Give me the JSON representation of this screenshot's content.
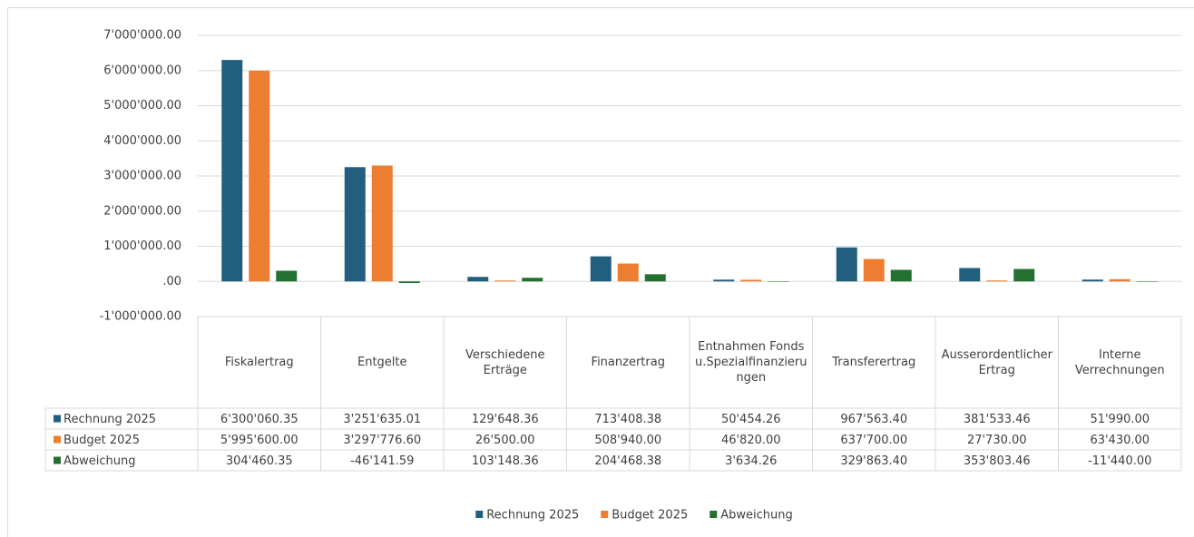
{
  "chart_data": {
    "type": "bar",
    "categories": [
      "Fiskalertrag",
      "Entgelte",
      "Verschiedene Erträge",
      "Finanzertrag",
      "Entnahmen Fonds u.Spezialfinanzierungen",
      "Transferertrag",
      "Ausserordentlicher Ertrag",
      "Interne Verrechnungen"
    ],
    "series": [
      {
        "name": "Rechnung 2025",
        "color": "#225e7e",
        "values": [
          6300060.35,
          3251635.01,
          129648.36,
          713408.38,
          50454.26,
          967563.4,
          381533.46,
          51990.0
        ],
        "value_labels": [
          "6'300'060.35",
          "3'251'635.01",
          "129'648.36",
          "713'408.38",
          "50'454.26",
          "967'563.40",
          "381'533.46",
          "51'990.00"
        ]
      },
      {
        "name": "Budget 2025",
        "color": "#ed7d31",
        "values": [
          5995600.0,
          3297776.6,
          26500.0,
          508940.0,
          46820.0,
          637700.0,
          27730.0,
          63430.0
        ],
        "value_labels": [
          "5'995'600.00",
          "3'297'776.60",
          "26'500.00",
          "508'940.00",
          "46'820.00",
          "637'700.00",
          "27'730.00",
          "63'430.00"
        ]
      },
      {
        "name": "Abweichung",
        "color": "#237030",
        "values": [
          304460.35,
          -46141.59,
          103148.36,
          204468.38,
          3634.26,
          329863.4,
          353803.46,
          -11440.0
        ],
        "value_labels": [
          "304'460.35",
          "-46'141.59",
          "103'148.36",
          "204'468.38",
          "3'634.26",
          "329'863.40",
          "353'803.46",
          "-11'440.00"
        ]
      }
    ],
    "ylim": [
      -1000000,
      7000000
    ],
    "yticks": [
      {
        "value": -1000000,
        "label": "-1'000'000.00"
      },
      {
        "value": 0,
        "label": ".00"
      },
      {
        "value": 1000000,
        "label": "1'000'000.00"
      },
      {
        "value": 2000000,
        "label": "2'000'000.00"
      },
      {
        "value": 3000000,
        "label": "3'000'000.00"
      },
      {
        "value": 4000000,
        "label": "4'000'000.00"
      },
      {
        "value": 5000000,
        "label": "5'000'000.00"
      },
      {
        "value": 6000000,
        "label": "6'000'000.00"
      },
      {
        "value": 7000000,
        "label": "7'000'000.00"
      }
    ],
    "grid": true,
    "legend": "bottom"
  }
}
